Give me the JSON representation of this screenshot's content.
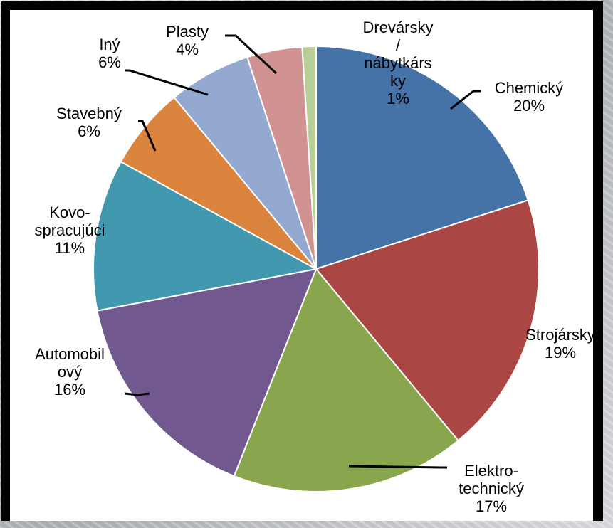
{
  "chart_data": {
    "type": "pie",
    "title": "",
    "slices": [
      {
        "label": "Chemický",
        "label_lines": [
          "Chemický",
          "20%"
        ],
        "value": 20,
        "color": "#4572a7"
      },
      {
        "label": "Strojársky",
        "label_lines": [
          "Strojársky",
          "19%"
        ],
        "value": 19,
        "color": "#aa4643"
      },
      {
        "label": "Elektro-technický",
        "label_lines": [
          "Elektro-",
          "technický",
          "17%"
        ],
        "value": 17,
        "color": "#89a54e"
      },
      {
        "label": "Automobilový",
        "label_lines": [
          "Automobil",
          "ový",
          "16%"
        ],
        "value": 16,
        "color": "#71588f"
      },
      {
        "label": "Kovo-spracujúci",
        "label_lines": [
          "Kovo-",
          "spracujúci",
          "11%"
        ],
        "value": 11,
        "color": "#4198af"
      },
      {
        "label": "Stavebný",
        "label_lines": [
          "Stavebný",
          "6%"
        ],
        "value": 6,
        "color": "#db843d"
      },
      {
        "label": "Iný",
        "label_lines": [
          "Iný",
          "6%"
        ],
        "value": 6,
        "color": "#93a9cf"
      },
      {
        "label": "Plasty",
        "label_lines": [
          "Plasty",
          "4%"
        ],
        "value": 4,
        "color": "#d19392"
      },
      {
        "label": "Drevársky / nábytkársky",
        "label_lines": [
          "Drevársky",
          "/",
          "nábytkárs",
          "ky",
          "1%"
        ],
        "value": 1,
        "color": "#b9cd96"
      }
    ]
  }
}
